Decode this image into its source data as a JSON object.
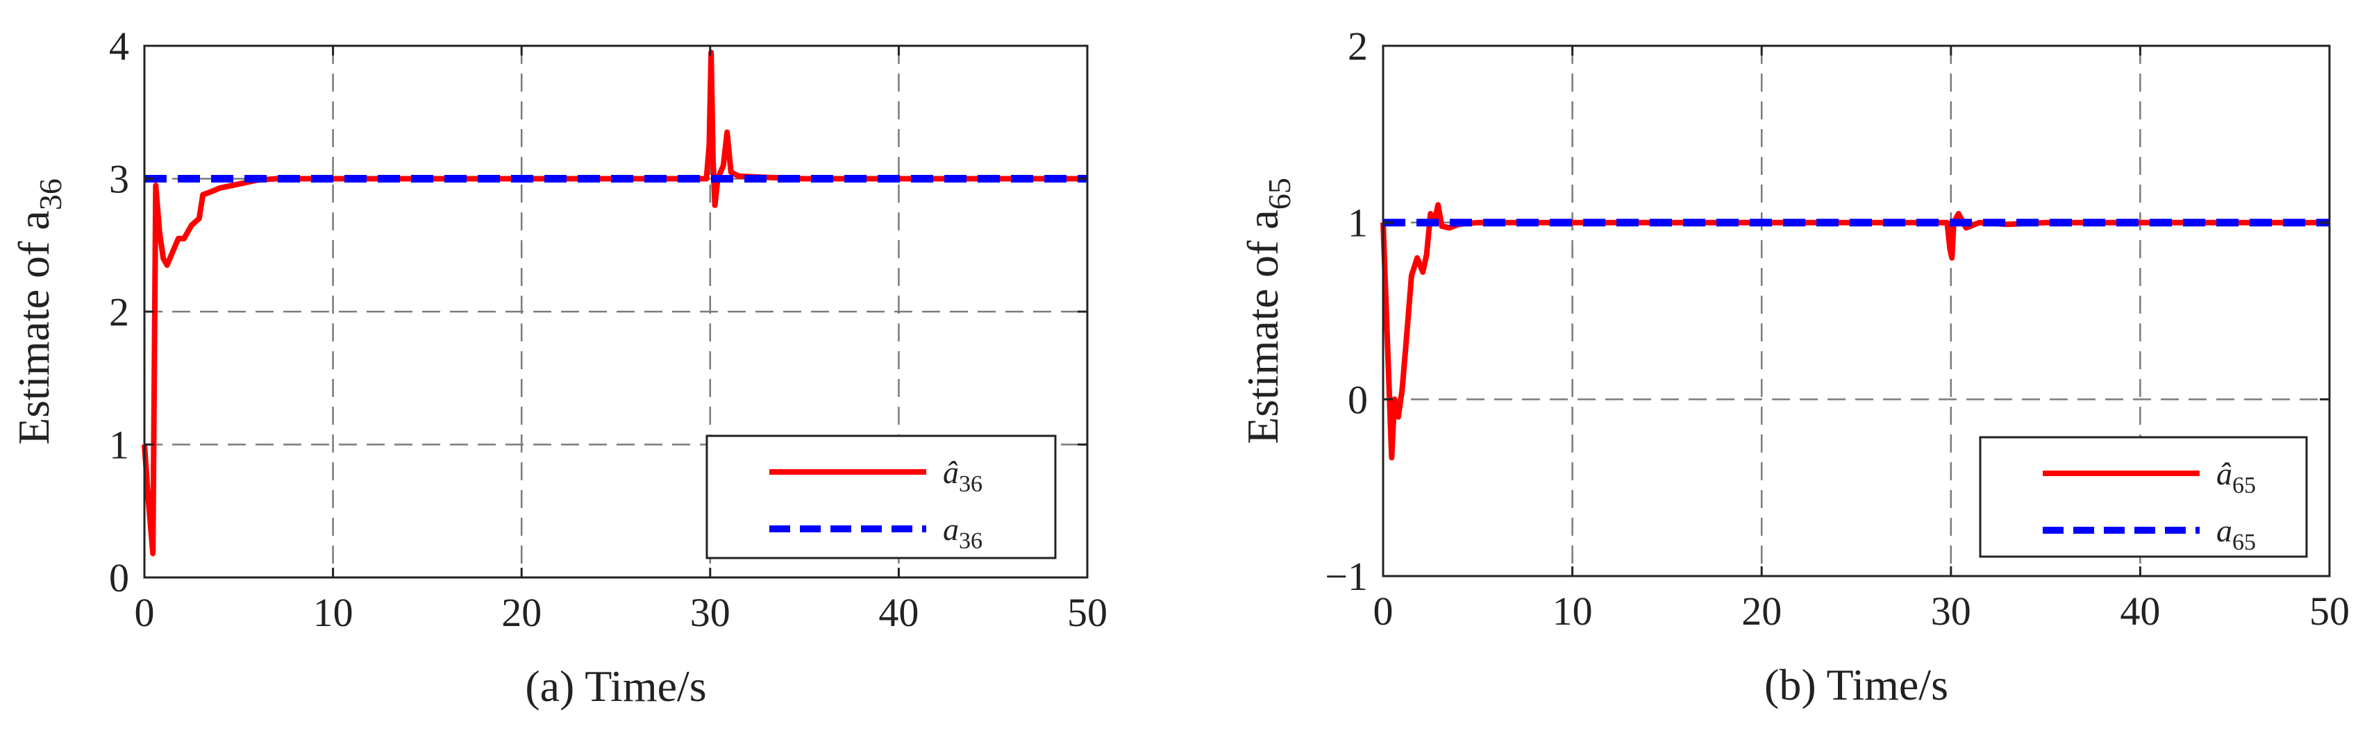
{
  "colors": {
    "estimate": "#ff0000",
    "true_value": "#0000ff",
    "grid": "#7a7a7a",
    "axis": "#222222"
  },
  "chart_data": [
    {
      "type": "line",
      "id": "a",
      "xlabel": "(a) Time/s",
      "ylabel": "Estimate of a",
      "ylabel_sub": "36",
      "xlim": [
        0,
        50
      ],
      "ylim": [
        0,
        4
      ],
      "xticks": [
        0,
        10,
        20,
        30,
        40,
        50
      ],
      "yticks": [
        0,
        1,
        2,
        3,
        4
      ],
      "grid": true,
      "legend_position": "bottom-right",
      "series": [
        {
          "name": "â36",
          "legend_main": "â",
          "legend_sub": "36",
          "style": "solid",
          "color": "#ff0000",
          "points": [
            [
              0,
              1.0
            ],
            [
              0.2,
              0.6
            ],
            [
              0.45,
              0.18
            ],
            [
              0.6,
              2.95
            ],
            [
              0.8,
              2.6
            ],
            [
              1.0,
              2.4
            ],
            [
              1.2,
              2.35
            ],
            [
              1.5,
              2.45
            ],
            [
              1.8,
              2.55
            ],
            [
              2.1,
              2.55
            ],
            [
              2.5,
              2.65
            ],
            [
              2.9,
              2.7
            ],
            [
              3.1,
              2.88
            ],
            [
              3.5,
              2.9
            ],
            [
              4.0,
              2.93
            ],
            [
              5.0,
              2.96
            ],
            [
              6.0,
              2.99
            ],
            [
              7.0,
              3.0
            ],
            [
              29.8,
              3.0
            ],
            [
              29.95,
              3.25
            ],
            [
              30.05,
              3.95
            ],
            [
              30.15,
              3.15
            ],
            [
              30.25,
              2.8
            ],
            [
              30.4,
              3.0
            ],
            [
              30.7,
              3.1
            ],
            [
              30.9,
              3.35
            ],
            [
              31.1,
              3.05
            ],
            [
              31.5,
              3.02
            ],
            [
              33.0,
              3.01
            ],
            [
              35.0,
              3.0
            ],
            [
              50,
              3.0
            ]
          ]
        },
        {
          "name": "a36",
          "legend_main": "a",
          "legend_sub": "36",
          "style": "dashed",
          "color": "#0000ff",
          "points": [
            [
              0,
              3.0
            ],
            [
              50,
              3.0
            ]
          ]
        }
      ]
    },
    {
      "type": "line",
      "id": "b",
      "xlabel": "(b) Time/s",
      "ylabel": "Estimate of a",
      "ylabel_sub": "65",
      "xlim": [
        0,
        50
      ],
      "ylim": [
        -1,
        2
      ],
      "xticks": [
        0,
        10,
        20,
        30,
        40,
        50
      ],
      "yticks": [
        -1,
        0,
        1,
        2
      ],
      "ytick_labels": [
        "−1",
        "0",
        "1",
        "2"
      ],
      "grid": true,
      "legend_position": "bottom-right",
      "series": [
        {
          "name": "â65",
          "legend_main": "â",
          "legend_sub": "65",
          "style": "solid",
          "color": "#ff0000",
          "points": [
            [
              0,
              1.0
            ],
            [
              0.2,
              0.4
            ],
            [
              0.45,
              -0.33
            ],
            [
              0.6,
              0.0
            ],
            [
              0.8,
              -0.1
            ],
            [
              1.0,
              0.05
            ],
            [
              1.2,
              0.3
            ],
            [
              1.5,
              0.7
            ],
            [
              1.8,
              0.8
            ],
            [
              2.1,
              0.72
            ],
            [
              2.3,
              0.82
            ],
            [
              2.5,
              1.05
            ],
            [
              2.7,
              1.0
            ],
            [
              2.9,
              1.1
            ],
            [
              3.1,
              0.98
            ],
            [
              3.5,
              0.97
            ],
            [
              4.0,
              0.99
            ],
            [
              5.0,
              1.0
            ],
            [
              29.8,
              1.0
            ],
            [
              29.95,
              0.85
            ],
            [
              30.05,
              0.8
            ],
            [
              30.15,
              1.0
            ],
            [
              30.4,
              1.05
            ],
            [
              30.8,
              0.97
            ],
            [
              31.5,
              1.0
            ],
            [
              33.0,
              0.99
            ],
            [
              35.0,
              1.0
            ],
            [
              50,
              1.0
            ]
          ]
        },
        {
          "name": "a65",
          "legend_main": "a",
          "legend_sub": "65",
          "style": "dashed",
          "color": "#0000ff",
          "points": [
            [
              0,
              1.0
            ],
            [
              50,
              1.0
            ]
          ]
        }
      ]
    }
  ]
}
